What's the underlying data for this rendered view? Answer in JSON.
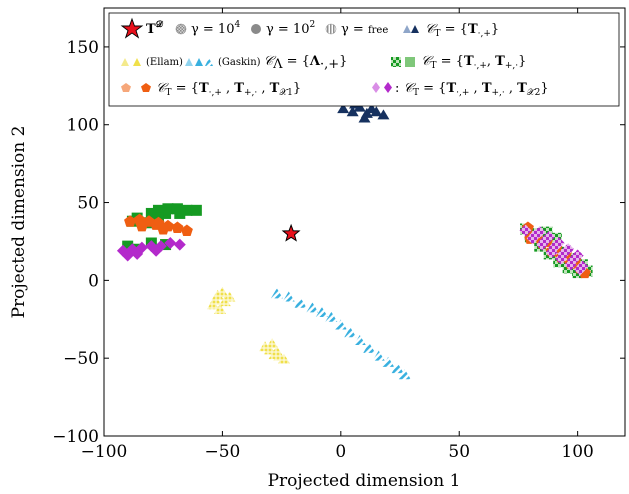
{
  "chart_data": {
    "type": "scatter",
    "xlabel": "Projected dimension 1",
    "ylabel": "Projected dimension 2",
    "xlim": [
      -100,
      120
    ],
    "ylim": [
      -100,
      175
    ],
    "xticks": [
      -100,
      -50,
      0,
      50,
      100
    ],
    "yticks": [
      -100,
      -50,
      0,
      50,
      100,
      150
    ],
    "grid": false,
    "legend_position": "top",
    "colors": {
      "star": "#e8101b",
      "navy": "#16315f",
      "yellow": "#f0e04a",
      "cyan": "#38b0df",
      "green": "#159a22",
      "orange": "#ef5e12",
      "purple": "#b32acb",
      "checker_light": "#e6b4ea"
    },
    "legend": {
      "row1": [
        {
          "symbol": "star",
          "text": "T^D"
        },
        {
          "symbol": "hatched-circle",
          "text": "γ = 10^4"
        },
        {
          "symbol": "grey-circle",
          "text": "γ = 10^2"
        },
        {
          "symbol": "striped-circle",
          "text": "γ = free"
        },
        {
          "symbol": "navy-triangles",
          "text": "C_T = {T.,+}"
        }
      ],
      "row2": [
        {
          "symbol": "yellow-triangles",
          "text": "(Ellam)"
        },
        {
          "symbol": "cyan-triangles",
          "text": "(Gaskin) C_Λ = {Λ.,+}"
        },
        {
          "symbol": "green-squares",
          "text": "C_T = {T.,+ , T+,.}"
        }
      ],
      "row3": [
        {
          "symbol": "orange-pentagons",
          "text": "C_T = {T.,+ , T+,. , T_X1}"
        },
        {
          "symbol": "purple-diamonds",
          "text": ": C_T = {T.,+ , T+,. , T_X2}"
        }
      ]
    },
    "points": [
      {
        "name": "T^D",
        "marker": "star",
        "x": -21,
        "y": 30
      }
    ],
    "clusters": [
      {
        "name": "navy",
        "label": "C_T = {T.,+}",
        "pattern": "solid",
        "points": [
          [
            1,
            110
          ],
          [
            5,
            108
          ],
          [
            8,
            111
          ],
          [
            11,
            107
          ],
          [
            13,
            110
          ],
          [
            15,
            108
          ],
          [
            18,
            106
          ],
          [
            6,
            113
          ],
          [
            10,
            104
          ]
        ]
      },
      {
        "name": "yellow-upper",
        "label": "(Ellam)",
        "pattern": "dots",
        "points": [
          [
            -54,
            -16
          ],
          [
            -52,
            -10
          ],
          [
            -50,
            -8
          ],
          [
            -49,
            -14
          ],
          [
            -47,
            -11
          ],
          [
            -51,
            -19
          ],
          [
            -53,
            -13
          ]
        ]
      },
      {
        "name": "yellow-lower",
        "label": "(Ellam)",
        "pattern": "dots",
        "points": [
          [
            -32,
            -43
          ],
          [
            -30,
            -45
          ],
          [
            -28,
            -48
          ],
          [
            -26,
            -49
          ],
          [
            -24,
            -51
          ],
          [
            -29,
            -41
          ],
          [
            -27,
            -46
          ]
        ]
      },
      {
        "name": "cyan-line",
        "label": "(Gaskin) C_Λ = {Λ.,+}",
        "pattern": "stripes",
        "points": [
          [
            -27,
            -9
          ],
          [
            -22,
            -11
          ],
          [
            -17,
            -15
          ],
          [
            -12,
            -18
          ],
          [
            -8,
            -21
          ],
          [
            -4,
            -24
          ],
          [
            0,
            -29
          ],
          [
            4,
            -34
          ],
          [
            8,
            -39
          ],
          [
            12,
            -44
          ],
          [
            16,
            -49
          ],
          [
            20,
            -53
          ],
          [
            24,
            -57
          ],
          [
            27,
            -61
          ]
        ]
      },
      {
        "name": "green",
        "label": "C_T = {T.,+ , T+,.}",
        "pattern": "solid",
        "points": [
          [
            -77,
            45
          ],
          [
            -73,
            46
          ],
          [
            -69,
            46
          ],
          [
            -65,
            45
          ],
          [
            -61,
            45
          ],
          [
            -74,
            43
          ],
          [
            -68,
            43
          ],
          [
            -80,
            43
          ],
          [
            -77,
            40
          ],
          [
            -86,
            40
          ],
          [
            -88,
            38
          ],
          [
            -82,
            37
          ],
          [
            -90,
            22
          ],
          [
            -80,
            24
          ],
          [
            -74,
            23
          ],
          [
            -87,
            20
          ]
        ]
      },
      {
        "name": "orange",
        "label": "C_T = {T.,+ , T+,. , T_X1}",
        "pattern": "solid",
        "points": [
          [
            -89,
            38
          ],
          [
            -85,
            39
          ],
          [
            -81,
            38
          ],
          [
            -77,
            37
          ],
          [
            -73,
            35
          ],
          [
            -69,
            34
          ],
          [
            -65,
            32
          ],
          [
            -84,
            35
          ],
          [
            -78,
            36
          ],
          [
            -75,
            33
          ]
        ]
      },
      {
        "name": "purple",
        "label": "C_T = {T.,+ , T+,. , T_X2}",
        "pattern": "solid",
        "points": [
          [
            -92,
            19
          ],
          [
            -88,
            20
          ],
          [
            -84,
            21
          ],
          [
            -80,
            22
          ],
          [
            -76,
            22
          ],
          [
            -72,
            24
          ],
          [
            -68,
            23
          ],
          [
            -86,
            17
          ],
          [
            -78,
            19
          ],
          [
            -90,
            16
          ]
        ]
      },
      {
        "name": "green-right",
        "label": "C_T = {T.,+ , T+,.}",
        "pattern": "checker",
        "points": [
          [
            78,
            33
          ],
          [
            82,
            30
          ],
          [
            86,
            26
          ],
          [
            90,
            22
          ],
          [
            94,
            18
          ],
          [
            98,
            14
          ],
          [
            102,
            10
          ],
          [
            104,
            6
          ],
          [
            80,
            28
          ],
          [
            84,
            22
          ],
          [
            88,
            17
          ],
          [
            92,
            12
          ],
          [
            96,
            8
          ],
          [
            100,
            5
          ],
          [
            87,
            31
          ],
          [
            91,
            27
          ]
        ]
      },
      {
        "name": "orange-right",
        "label": "C_T = {T.,+ , T+,. , T_X1}",
        "pattern": "solid",
        "points": [
          [
            79,
            34
          ],
          [
            83,
            29
          ],
          [
            87,
            25
          ],
          [
            91,
            21
          ],
          [
            95,
            17
          ],
          [
            99,
            13
          ],
          [
            80,
            27
          ],
          [
            85,
            24
          ],
          [
            89,
            19
          ],
          [
            93,
            15
          ],
          [
            97,
            11
          ],
          [
            101,
            8
          ],
          [
            103,
            5
          ]
        ]
      },
      {
        "name": "purple-right",
        "label": "C_T = {T.,+ , T+,. , T_X2}",
        "pattern": "checker",
        "points": [
          [
            78,
            32
          ],
          [
            82,
            29
          ],
          [
            86,
            25
          ],
          [
            90,
            21
          ],
          [
            94,
            17
          ],
          [
            98,
            13
          ],
          [
            102,
            9
          ],
          [
            81,
            27
          ],
          [
            85,
            23
          ],
          [
            89,
            18
          ],
          [
            93,
            14
          ],
          [
            97,
            10
          ],
          [
            101,
            7
          ],
          [
            84,
            31
          ],
          [
            88,
            28
          ],
          [
            92,
            24
          ],
          [
            96,
            20
          ],
          [
            100,
            16
          ]
        ]
      }
    ]
  }
}
